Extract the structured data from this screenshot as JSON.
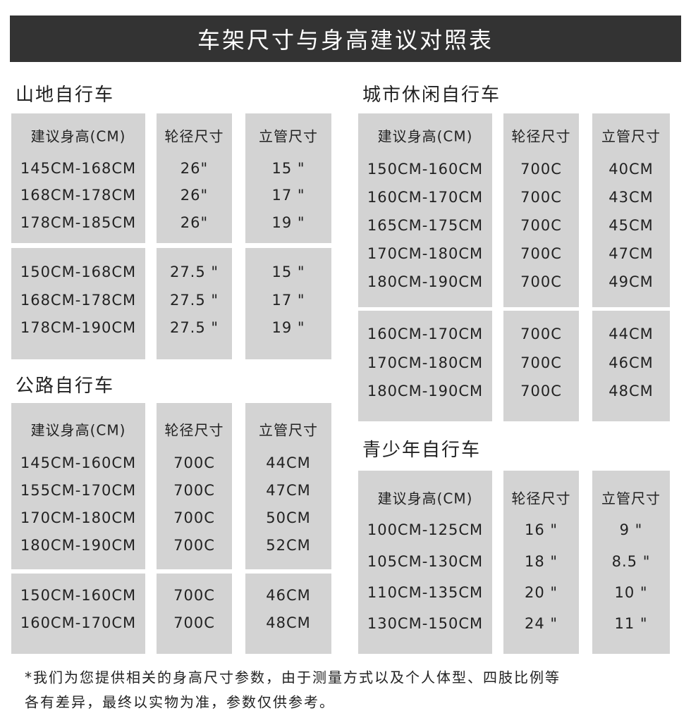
{
  "title": "车架尺寸与身高建议对照表",
  "columns": [
    "建议身高(CM)",
    "轮径尺寸",
    "立管尺寸"
  ],
  "sections": {
    "mountain": {
      "title": "山地自行车",
      "groups": [
        [
          [
            "145CM-168CM",
            "26\"",
            "15 \""
          ],
          [
            "168CM-178CM",
            "26\"",
            "17 \""
          ],
          [
            "178CM-185CM",
            "26\"",
            "19 \""
          ]
        ],
        [
          [
            "150CM-168CM",
            "27.5 \"",
            "15 \""
          ],
          [
            "168CM-178CM",
            "27.5 \"",
            "17 \""
          ],
          [
            "178CM-190CM",
            "27.5 \"",
            "19 \""
          ]
        ]
      ]
    },
    "road": {
      "title": "公路自行车",
      "groups": [
        [
          [
            "145CM-160CM",
            "700C",
            "44CM"
          ],
          [
            "155CM-170CM",
            "700C",
            "47CM"
          ],
          [
            "170CM-180CM",
            "700C",
            "50CM"
          ],
          [
            "180CM-190CM",
            "700C",
            "52CM"
          ]
        ],
        [
          [
            "150CM-160CM",
            "700C",
            "46CM"
          ],
          [
            "160CM-170CM",
            "700C",
            "48CM"
          ]
        ]
      ]
    },
    "city": {
      "title": "城市休闲自行车",
      "groups": [
        [
          [
            "150CM-160CM",
            "700C",
            "40CM"
          ],
          [
            "160CM-170CM",
            "700C",
            "43CM"
          ],
          [
            "165CM-175CM",
            "700C",
            "45CM"
          ],
          [
            "170CM-180CM",
            "700C",
            "47CM"
          ],
          [
            "180CM-190CM",
            "700C",
            "49CM"
          ]
        ],
        [
          [
            "160CM-170CM",
            "700C",
            "44CM"
          ],
          [
            "170CM-180CM",
            "700C",
            "46CM"
          ],
          [
            "180CM-190CM",
            "700C",
            "48CM"
          ]
        ]
      ]
    },
    "youth": {
      "title": "青少年自行车",
      "groups": [
        [
          [
            "100CM-125CM",
            "16 \"",
            "9 \""
          ],
          [
            "105CM-130CM",
            "18 \"",
            "8.5 \""
          ],
          [
            "110CM-135CM",
            "20 \"",
            "10 \""
          ],
          [
            "130CM-150CM",
            "24 \"",
            "11 \""
          ]
        ]
      ]
    }
  },
  "footnote": [
    "*我们为您提供相关的身高尺寸参数，由于测量方式以及个人体型、四肢比例等",
    "各有差异，最终以实物为准，参数仅供参考。"
  ],
  "colors": {
    "header_bg": "#333333",
    "cell_bg": "#d3d3d3",
    "text": "#222222"
  }
}
